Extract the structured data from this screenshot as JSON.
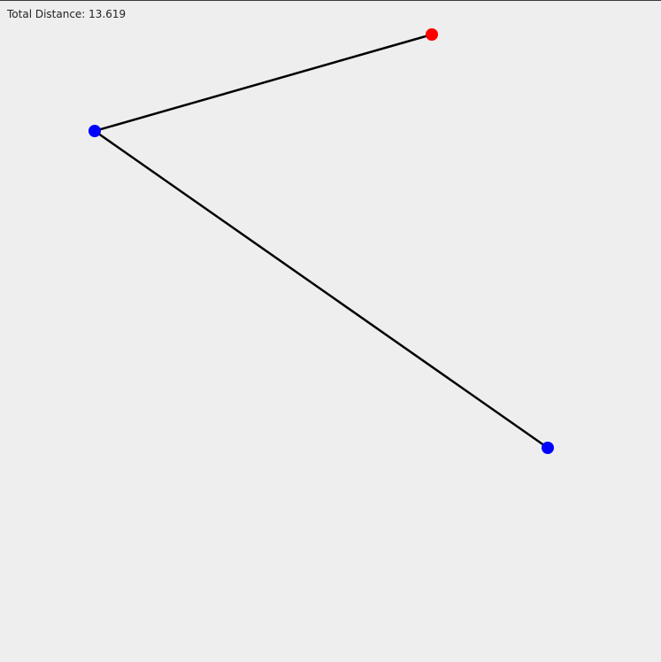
{
  "status": {
    "total_distance_text": "Total Distance: 13.619"
  },
  "colors": {
    "background": "#eeeeee",
    "route_line": "#000000",
    "start_point": "#ff0000",
    "stop_point": "#0000ff"
  },
  "route": {
    "point_count": 3,
    "segment_count": 2
  }
}
